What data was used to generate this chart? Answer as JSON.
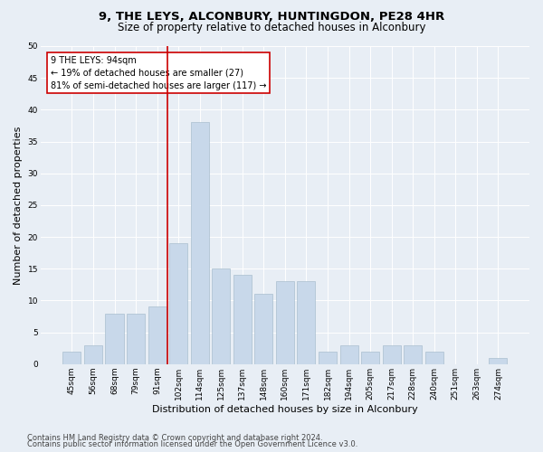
{
  "title1": "9, THE LEYS, ALCONBURY, HUNTINGDON, PE28 4HR",
  "title2": "Size of property relative to detached houses in Alconbury",
  "xlabel": "Distribution of detached houses by size in Alconbury",
  "ylabel": "Number of detached properties",
  "categories": [
    "45sqm",
    "56sqm",
    "68sqm",
    "79sqm",
    "91sqm",
    "102sqm",
    "114sqm",
    "125sqm",
    "137sqm",
    "148sqm",
    "160sqm",
    "171sqm",
    "182sqm",
    "194sqm",
    "205sqm",
    "217sqm",
    "228sqm",
    "240sqm",
    "251sqm",
    "263sqm",
    "274sqm"
  ],
  "values": [
    2,
    3,
    8,
    8,
    9,
    19,
    38,
    15,
    14,
    11,
    13,
    13,
    2,
    3,
    2,
    3,
    3,
    2,
    0,
    0,
    1
  ],
  "bar_color": "#c8d8ea",
  "bar_edge_color": "#aabfcf",
  "bar_width": 0.85,
  "vline_index": 4.5,
  "vline_color": "#cc0000",
  "annotation_text": "9 THE LEYS: 94sqm\n← 19% of detached houses are smaller (27)\n81% of semi-detached houses are larger (117) →",
  "annotation_box_color": "#ffffff",
  "annotation_box_edge_color": "#cc0000",
  "ylim": [
    0,
    50
  ],
  "yticks": [
    0,
    5,
    10,
    15,
    20,
    25,
    30,
    35,
    40,
    45,
    50
  ],
  "bg_color": "#e8eef5",
  "plot_bg_color": "#e8eef5",
  "footer1": "Contains HM Land Registry data © Crown copyright and database right 2024.",
  "footer2": "Contains public sector information licensed under the Open Government Licence v3.0.",
  "title1_fontsize": 9.5,
  "title2_fontsize": 8.5,
  "xlabel_fontsize": 8,
  "ylabel_fontsize": 8,
  "tick_fontsize": 6.5,
  "footer_fontsize": 6,
  "annotation_fontsize": 7
}
